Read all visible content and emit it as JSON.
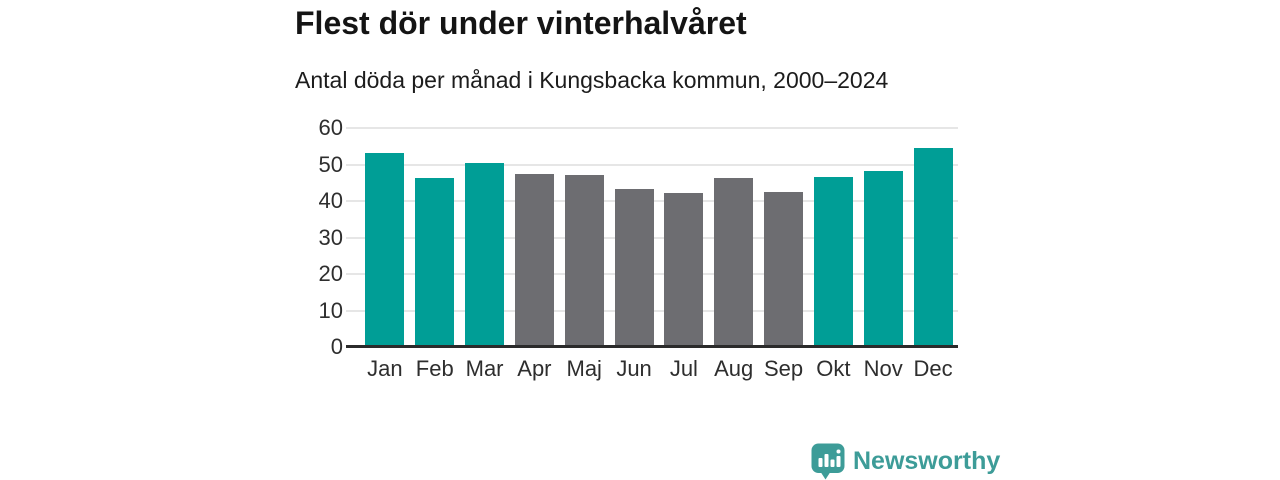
{
  "header": {
    "title": "Flest dör under vinterhalvåret",
    "subtitle": "Antal döda per månad i Kungsbacka kommun, 2000–2024"
  },
  "chart_data": {
    "type": "bar",
    "title": "Flest dör under vinterhalvåret",
    "subtitle": "Antal döda per månad i Kungsbacka kommun, 2000–2024",
    "categories": [
      "Jan",
      "Feb",
      "Mar",
      "Apr",
      "Maj",
      "Jun",
      "Jul",
      "Aug",
      "Sep",
      "Okt",
      "Nov",
      "Dec"
    ],
    "values": [
      53.1,
      46.2,
      50.3,
      47.5,
      47.2,
      43.2,
      42.2,
      46.4,
      42.6,
      46.7,
      48.3,
      54.5
    ],
    "highlighted": [
      true,
      true,
      true,
      false,
      false,
      false,
      false,
      false,
      false,
      true,
      true,
      true
    ],
    "xlabel": "",
    "ylabel": "",
    "ylim": [
      0,
      60
    ],
    "y_ticks": [
      0,
      10,
      20,
      30,
      40,
      50,
      60
    ],
    "grid": true,
    "legend": "none",
    "colors": {
      "bar_highlight": "#009e96",
      "bar_default": "#6d6d71",
      "axis": "#2b2b2b",
      "gridline": "#e6e6e6",
      "tick_label": "#2e2e2e"
    }
  },
  "footer": {
    "brand": "Newsworthy",
    "logo_icon": "newsworthy-speech-bubble-bar-chart-icon",
    "brand_color": "#3d9c98"
  }
}
